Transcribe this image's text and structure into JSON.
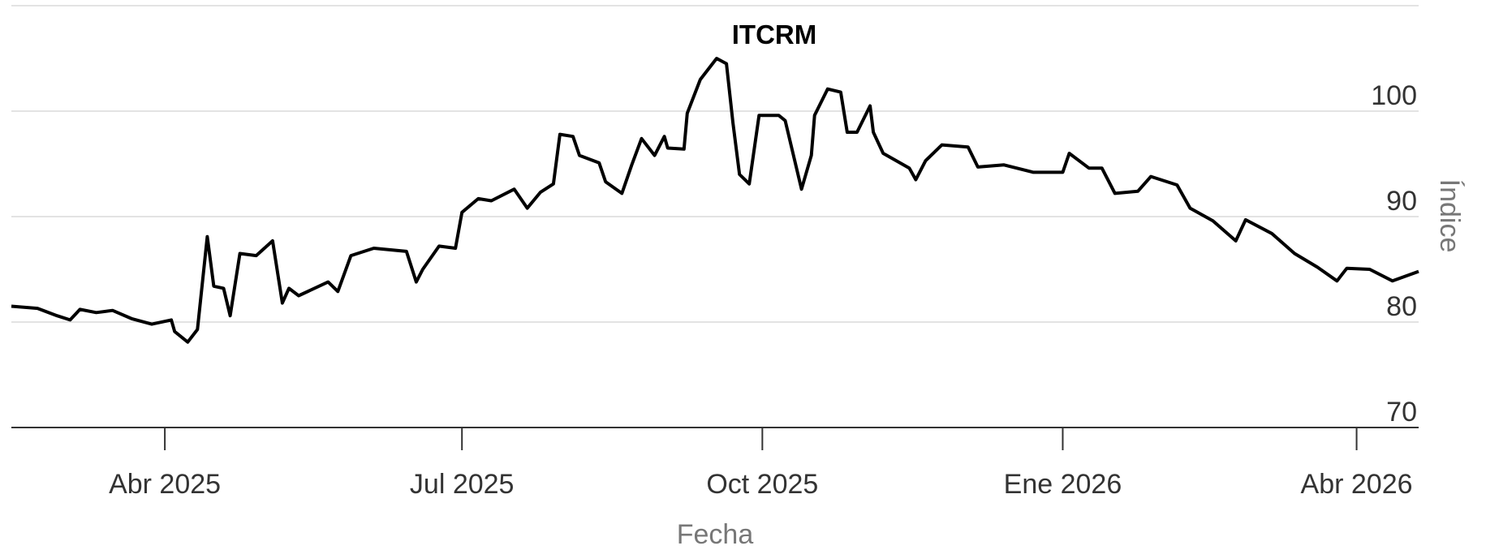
{
  "chart_data": {
    "type": "line",
    "title": "ITCRM",
    "x_label": "Fecha",
    "y_label": "Índice",
    "x": [
      "2025-02-13",
      "2025-02-21",
      "2025-02-27",
      "2025-03-03",
      "2025-03-06",
      "2025-03-11",
      "2025-03-16",
      "2025-03-22",
      "2025-03-28",
      "2025-04-03",
      "2025-04-04",
      "2025-04-08",
      "2025-04-11",
      "2025-04-14",
      "2025-04-16",
      "2025-04-19",
      "2025-04-21",
      "2025-04-24",
      "2025-04-29",
      "2025-05-04",
      "2025-05-07",
      "2025-05-09",
      "2025-05-12",
      "2025-05-21",
      "2025-05-24",
      "2025-05-28",
      "2025-06-04",
      "2025-06-14",
      "2025-06-17",
      "2025-06-19",
      "2025-06-24",
      "2025-06-29",
      "2025-07-01",
      "2025-07-06",
      "2025-07-10",
      "2025-07-17",
      "2025-07-21",
      "2025-07-25",
      "2025-07-29",
      "2025-07-31",
      "2025-08-04",
      "2025-08-06",
      "2025-08-12",
      "2025-08-14",
      "2025-08-19",
      "2025-08-22",
      "2025-08-25",
      "2025-08-29",
      "2025-09-01",
      "2025-09-02",
      "2025-09-07",
      "2025-09-08",
      "2025-09-12",
      "2025-09-17",
      "2025-09-20",
      "2025-09-22",
      "2025-09-24",
      "2025-09-27",
      "2025-09-30",
      "2025-10-06",
      "2025-10-08",
      "2025-10-13",
      "2025-10-16",
      "2025-10-17",
      "2025-10-21",
      "2025-10-25",
      "2025-10-27",
      "2025-10-30",
      "2025-11-03",
      "2025-11-04",
      "2025-11-07",
      "2025-11-15",
      "2025-11-17",
      "2025-11-20",
      "2025-11-25",
      "2025-12-03",
      "2025-12-06",
      "2025-12-14",
      "2025-12-23",
      "2026-01-01",
      "2026-01-03",
      "2026-01-09",
      "2026-01-13",
      "2026-01-17",
      "2026-01-24",
      "2026-01-28",
      "2026-02-05",
      "2026-02-09",
      "2026-02-16",
      "2026-02-23",
      "2026-02-26",
      "2026-03-06",
      "2026-03-13",
      "2026-03-20",
      "2026-03-26",
      "2026-03-29",
      "2026-04-05",
      "2026-04-12",
      "2026-04-20"
    ],
    "series": [
      {
        "name": "ITCRM",
        "color": "#000000",
        "values": [
          81.5,
          81.3,
          80.6,
          80.2,
          81.2,
          80.9,
          81.1,
          80.3,
          79.8,
          80.2,
          79.1,
          78.1,
          79.3,
          88.1,
          83.4,
          83.2,
          80.6,
          86.5,
          86.3,
          87.7,
          81.8,
          83.2,
          82.5,
          83.8,
          82.9,
          86.3,
          87.0,
          86.7,
          83.8,
          85.0,
          87.2,
          87.0,
          90.4,
          91.7,
          91.5,
          92.6,
          90.8,
          92.3,
          93.1,
          97.8,
          97.6,
          95.8,
          95.1,
          93.3,
          92.2,
          94.9,
          97.4,
          95.8,
          97.6,
          96.5,
          96.4,
          99.8,
          103.0,
          105.0,
          104.5,
          98.9,
          94.0,
          93.1,
          99.6,
          99.6,
          99.1,
          92.6,
          95.8,
          99.6,
          102.1,
          101.8,
          98.0,
          98.0,
          100.5,
          98.0,
          96.0,
          94.6,
          93.5,
          95.3,
          96.8,
          96.6,
          94.7,
          94.9,
          94.2,
          94.2,
          96.0,
          94.6,
          94.6,
          92.2,
          92.4,
          93.8,
          93.0,
          90.8,
          89.6,
          87.7,
          89.7,
          88.4,
          86.5,
          85.2,
          83.9,
          85.1,
          85.0,
          83.9,
          84.8
        ]
      }
    ],
    "xlim": [
      "2025-02-13",
      "2026-04-20"
    ],
    "xticks": [
      {
        "value": "2025-04-01",
        "label": "Abr 2025"
      },
      {
        "value": "2025-07-01",
        "label": "Jul 2025"
      },
      {
        "value": "2025-10-01",
        "label": "Oct 2025"
      },
      {
        "value": "2026-01-01",
        "label": "Ene 2026"
      },
      {
        "value": "2026-04-01",
        "label": "Abr 2026"
      }
    ],
    "ylim": [
      70,
      110
    ],
    "yticks": [
      70,
      80,
      90,
      100
    ],
    "grid": true
  }
}
